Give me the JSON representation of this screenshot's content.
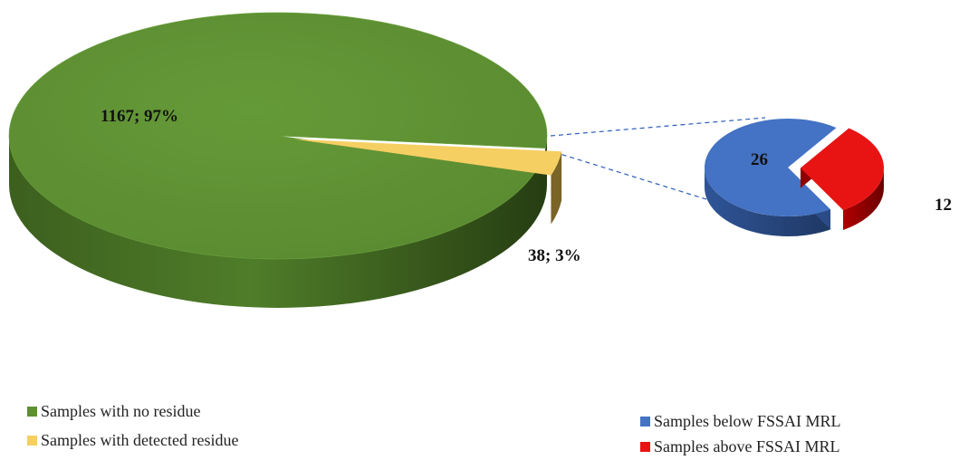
{
  "chart_data": [
    {
      "type": "pie",
      "slices": [
        {
          "name": "Samples with no residue",
          "value": 1167,
          "percent": 97,
          "color": "#5e8f33",
          "label": "1167; 97%"
        },
        {
          "name": "Samples with detected residue",
          "value": 38,
          "percent": 3,
          "color": "#f6cf63",
          "label": "38; 3%"
        }
      ]
    },
    {
      "type": "pie",
      "slices": [
        {
          "name": "Samples below FSSAI MRL",
          "value": 26,
          "color": "#4472c4",
          "label": "26"
        },
        {
          "name": "Samples above FSSAI MRL",
          "value": 12,
          "color": "#e81414",
          "label": "12"
        }
      ]
    }
  ],
  "legend_left": [
    {
      "label": "Samples with no residue",
      "color": "#5e8f33"
    },
    {
      "label": "Samples with detected residue",
      "color": "#f6cf63"
    }
  ],
  "legend_right": [
    {
      "label": "Samples below FSSAI MRL",
      "color": "#4472c4"
    },
    {
      "label": "Samples above FSSAI MRL",
      "color": "#e81414"
    }
  ]
}
